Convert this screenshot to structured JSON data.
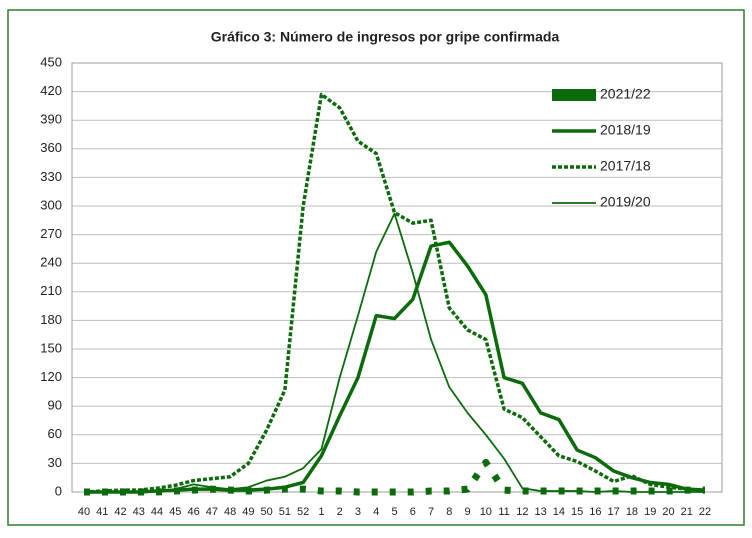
{
  "chart_data": {
    "type": "line",
    "title": "Gráfico 3: Número de ingresos por gripe confirmada",
    "categories": [
      "40",
      "41",
      "42",
      "43",
      "44",
      "45",
      "46",
      "47",
      "48",
      "49",
      "50",
      "51",
      "52",
      "1",
      "2",
      "3",
      "4",
      "5",
      "6",
      "7",
      "8",
      "9",
      "10",
      "11",
      "12",
      "13",
      "14",
      "15",
      "16",
      "17",
      "18",
      "19",
      "20",
      "21",
      "22"
    ],
    "series": [
      {
        "name": "2021/22",
        "color": "#0b6b0b",
        "values": [
          0,
          0,
          0,
          0,
          0,
          1,
          2,
          3,
          2,
          1,
          2,
          3,
          3,
          1,
          1,
          0,
          0,
          0,
          0,
          1,
          1,
          3,
          31,
          2,
          1,
          1,
          1,
          1,
          1,
          1,
          1,
          1,
          1,
          2,
          2
        ]
      },
      {
        "name": "2018/19",
        "color": "#0b6b0b",
        "values": [
          0,
          0,
          0,
          0,
          1,
          2,
          3,
          3,
          2,
          2,
          3,
          5,
          10,
          38,
          80,
          120,
          185,
          182,
          202,
          258,
          262,
          237,
          207,
          120,
          114,
          83,
          76,
          44,
          36,
          22,
          15,
          10,
          8,
          3,
          2
        ]
      },
      {
        "name": "2017/18",
        "color": "#0b6b0b",
        "values": [
          0,
          1,
          2,
          2,
          4,
          7,
          12,
          14,
          16,
          30,
          65,
          107,
          300,
          417,
          403,
          368,
          355,
          293,
          282,
          285,
          193,
          170,
          160,
          87,
          78,
          58,
          38,
          32,
          22,
          11,
          17,
          8,
          5,
          3,
          2
        ]
      },
      {
        "name": "2019/20",
        "color": "#0b6b0b",
        "values": [
          0,
          0,
          0,
          0,
          1,
          3,
          8,
          5,
          3,
          5,
          12,
          16,
          25,
          45,
          120,
          185,
          252,
          292,
          230,
          160,
          110,
          83,
          60,
          35,
          4,
          1,
          1,
          1,
          0,
          1,
          0,
          0,
          0,
          0,
          0
        ]
      }
    ],
    "ylim": [
      0,
      450
    ],
    "yticks": [
      0,
      30,
      60,
      90,
      120,
      150,
      180,
      210,
      240,
      270,
      300,
      330,
      360,
      390,
      420,
      450
    ],
    "grid": true,
    "legend": "top-right"
  }
}
